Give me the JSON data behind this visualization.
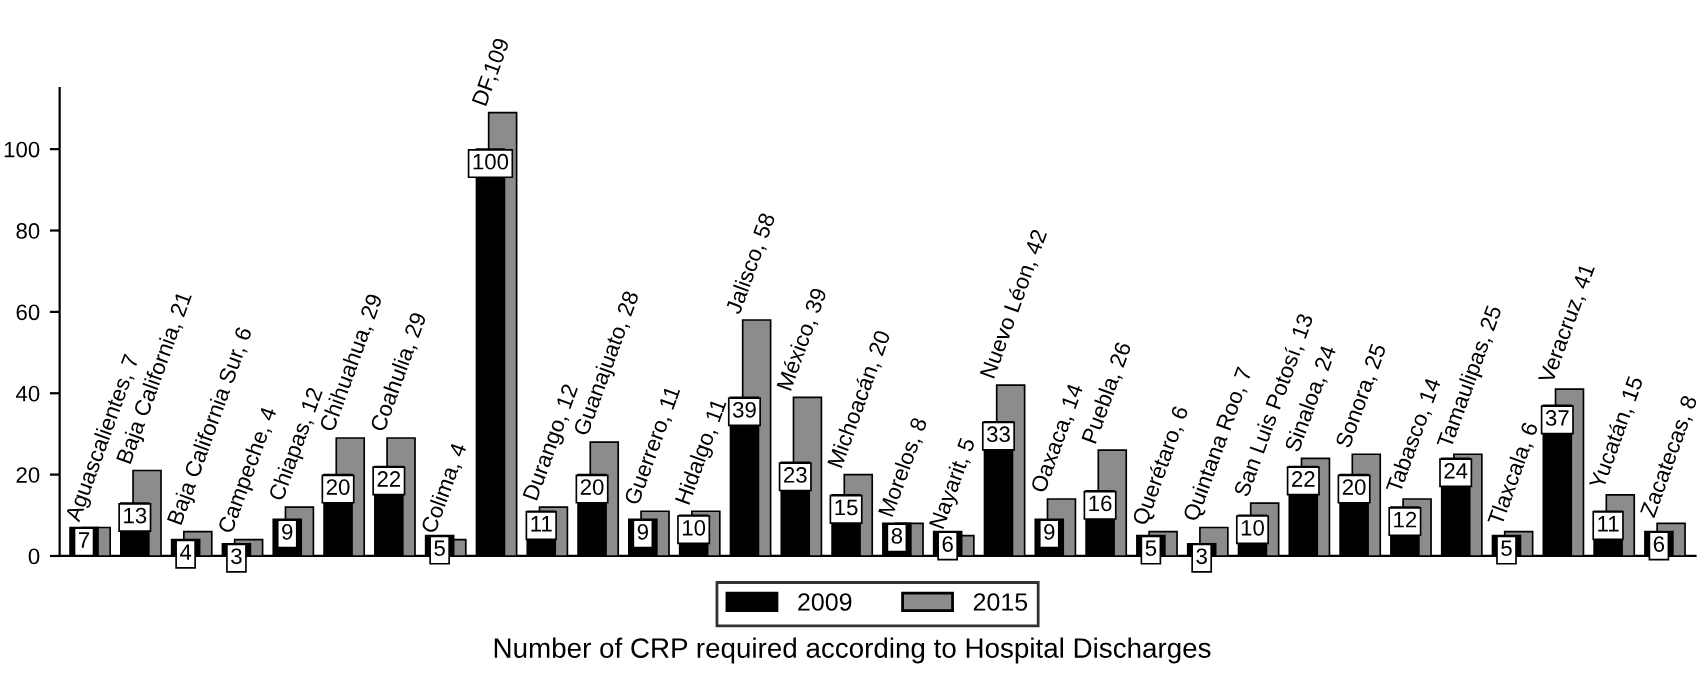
{
  "chart_data": {
    "type": "bar",
    "xlabel": "Number of CRP required according to Hospital Discharges",
    "categories": [
      null,
      null,
      null,
      null,
      null,
      null,
      null,
      null,
      null,
      null,
      null,
      null,
      null,
      null,
      null,
      null,
      null,
      null,
      null,
      null,
      null,
      null,
      null,
      null,
      null,
      null,
      null,
      null,
      null,
      null,
      null,
      null
    ],
    "series": [
      {
        "name": "2009",
        "color": "#000000",
        "values": [
          7,
          13,
          4,
          3,
          9,
          20,
          22,
          5,
          100,
          11,
          20,
          9,
          10,
          39,
          23,
          15,
          8,
          6,
          33,
          9,
          16,
          5,
          3,
          10,
          22,
          20,
          12,
          24,
          5,
          37,
          11,
          6
        ],
        "value_labels": [
          "7",
          "13",
          "4",
          "3",
          "9",
          "20",
          "22",
          "5",
          "100",
          "11",
          "20",
          "9",
          "10",
          "39",
          "23",
          "15",
          "8",
          "6",
          "33",
          "9",
          "16",
          "5",
          "3",
          "10",
          "22",
          "20",
          "12",
          "24",
          "5",
          "37",
          "11",
          "6"
        ]
      },
      {
        "name": "2015",
        "color": "#8c8c8c",
        "values": [
          7,
          21,
          6,
          4,
          12,
          29,
          29,
          4,
          109,
          12,
          28,
          11,
          11,
          58,
          39,
          20,
          8,
          5,
          42,
          14,
          26,
          6,
          7,
          13,
          24,
          25,
          14,
          25,
          6,
          41,
          15,
          8
        ],
        "value_labels": [
          "Aguascalientes, 7",
          "Baja California, 21",
          "Baja California Sur, 6",
          "Campeche, 4",
          "Chiapas, 12",
          "Chihuahua, 29",
          "Coahulia, 29",
          "Colima, 4",
          "DF,109",
          "Durango, 12",
          "Guanajuato, 28",
          "Guerrero, 11",
          "Hidalgo, 11",
          "Jalisco, 58",
          "México, 39",
          "Michoacán, 20",
          "Morelos, 8",
          "Nayarit, 5",
          "Nuevo Léon, 42",
          "Oaxaca, 14",
          "Puebla, 26",
          "Querétaro, 6",
          "Quintana Roo, 7",
          "San Luis Potosí, 13",
          "Sinaloa, 24",
          "Sonora, 25",
          "Tabasco, 14",
          "Tamaulipas, 25",
          "Tlaxcala, 6",
          "Veracruz, 41",
          "Yucatán, 15",
          "Zacatecas, 8"
        ]
      }
    ],
    "ylim": [
      0,
      115
    ],
    "yticks": [
      0,
      20,
      40,
      60,
      80,
      100
    ],
    "grid": false,
    "legend": "bottom"
  }
}
